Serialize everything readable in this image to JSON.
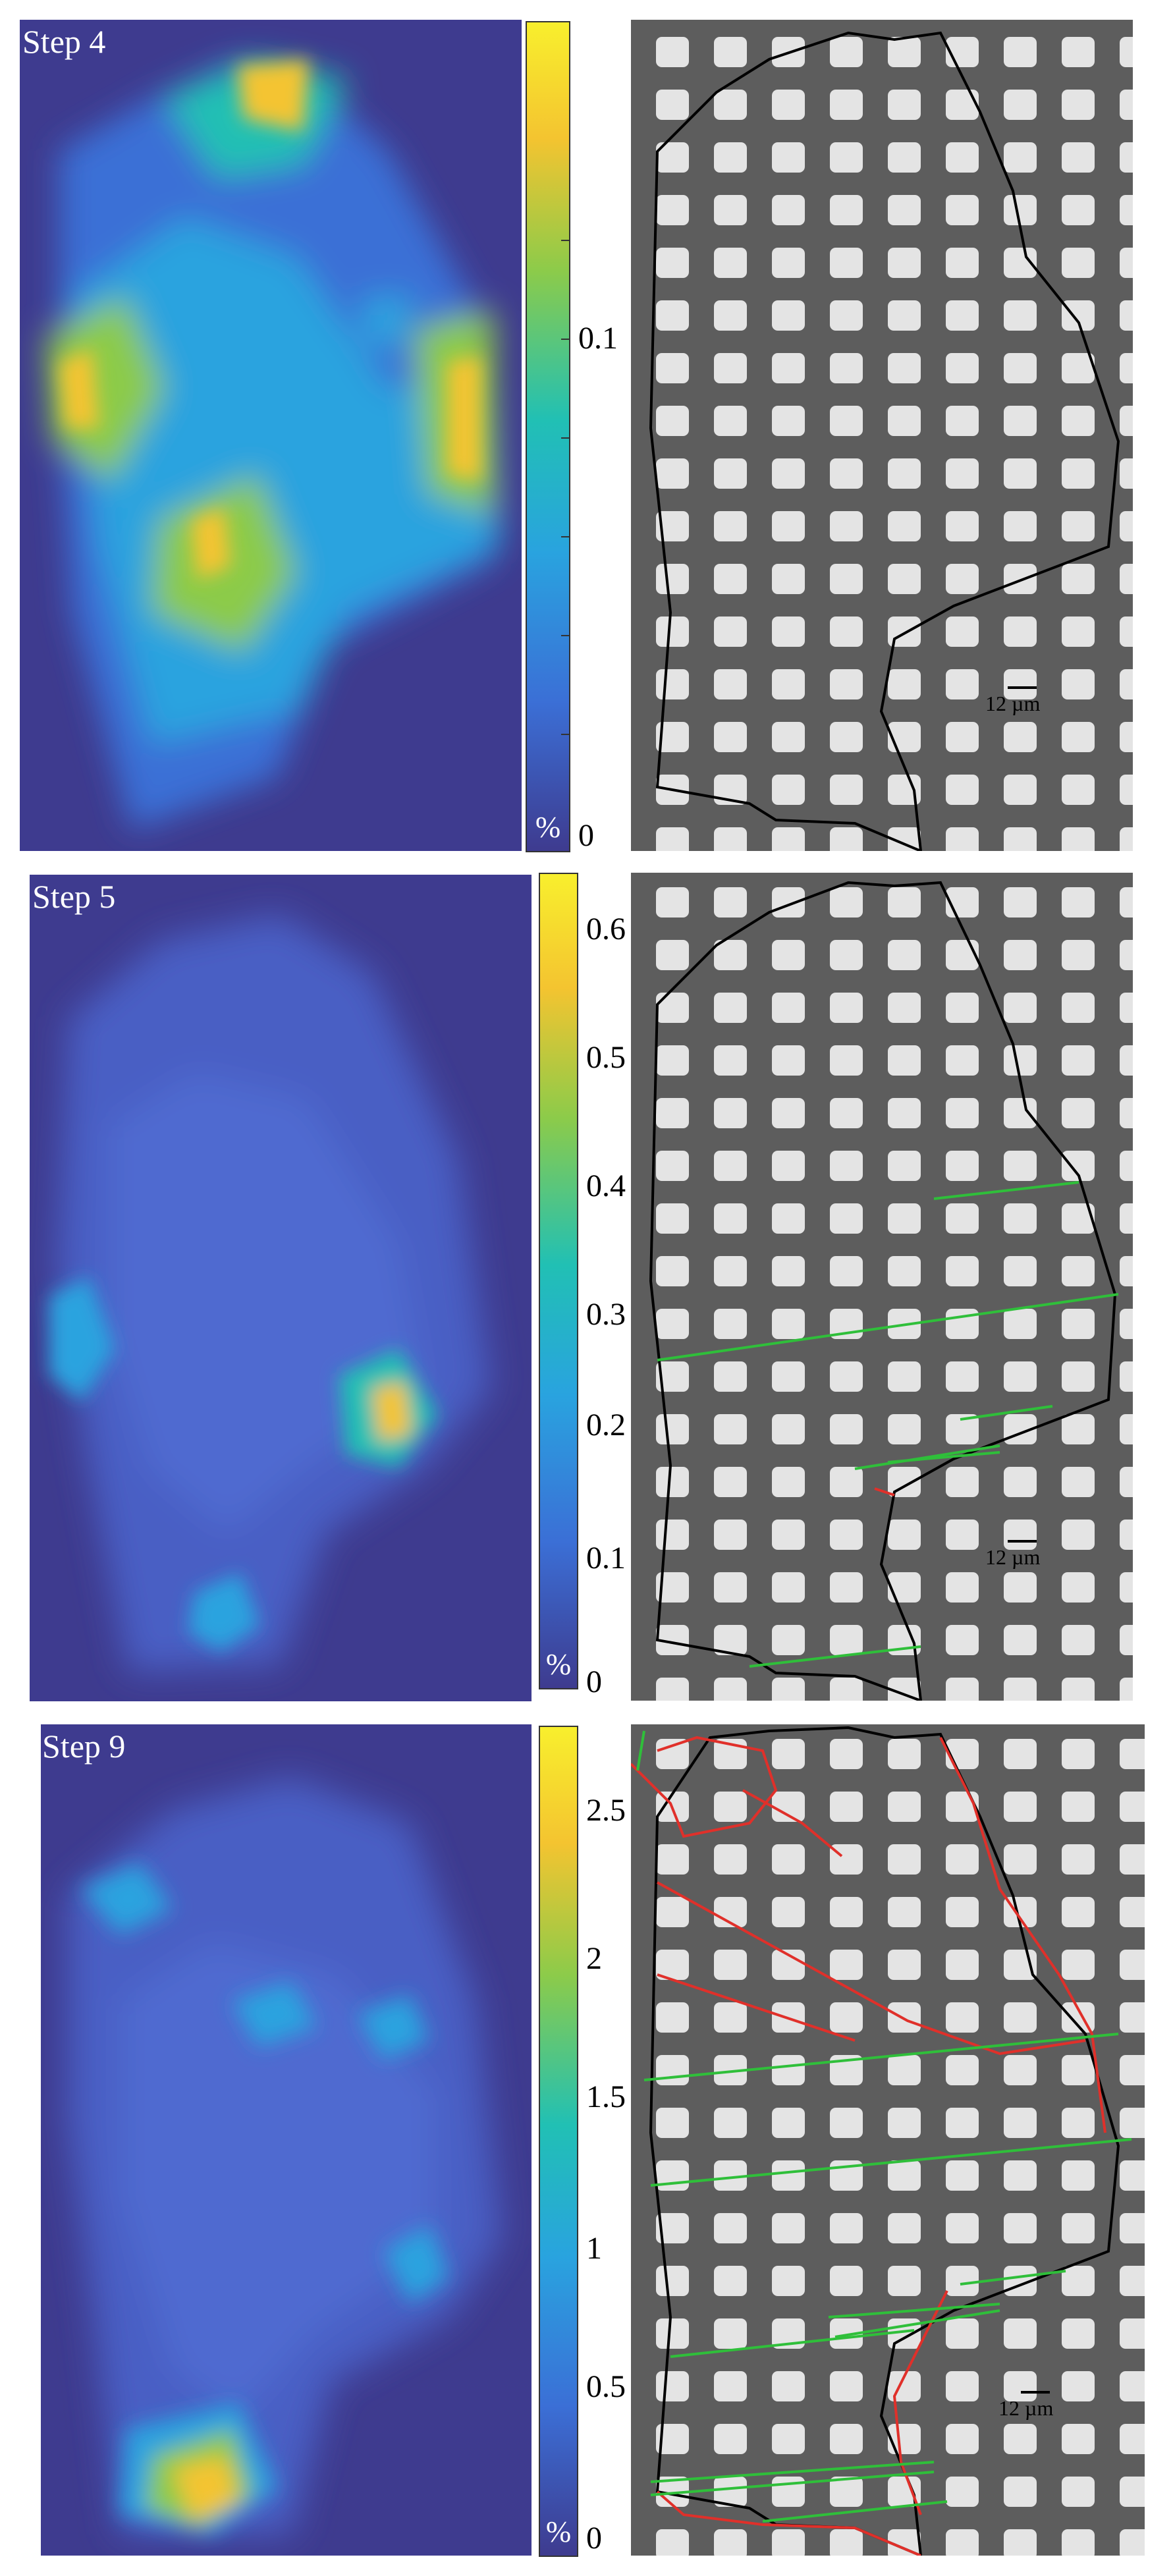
{
  "panels": [
    {
      "label": "Step 4",
      "unit": "%",
      "ticks": [
        "0.1",
        "0"
      ],
      "scalebar": "12 µm",
      "colormap": [
        "#3e3b8f",
        "#3b6fd6",
        "#29a3df",
        "#21c0b4",
        "#8ccb4a",
        "#f4c430",
        "#f8ef2d"
      ]
    },
    {
      "label": "Step 5",
      "unit": "%",
      "ticks": [
        "0.6",
        "0.5",
        "0.4",
        "0.3",
        "0.2",
        "0.1",
        "0"
      ],
      "scalebar": "12 µm",
      "colormap": [
        "#3e3b8f",
        "#3b6fd6",
        "#29a3df",
        "#21c0b4",
        "#8ccb4a",
        "#f4c430",
        "#f8ef2d"
      ]
    },
    {
      "label": "Step 9",
      "unit": "%",
      "ticks": [
        "2.5",
        "2",
        "1.5",
        "1",
        "0.5",
        "0"
      ],
      "scalebar": "12 µm",
      "colormap": [
        "#3e3b8f",
        "#3b6fd6",
        "#29a3df",
        "#21c0b4",
        "#8ccb4a",
        "#f4c430",
        "#f8ef2d"
      ]
    }
  ]
}
